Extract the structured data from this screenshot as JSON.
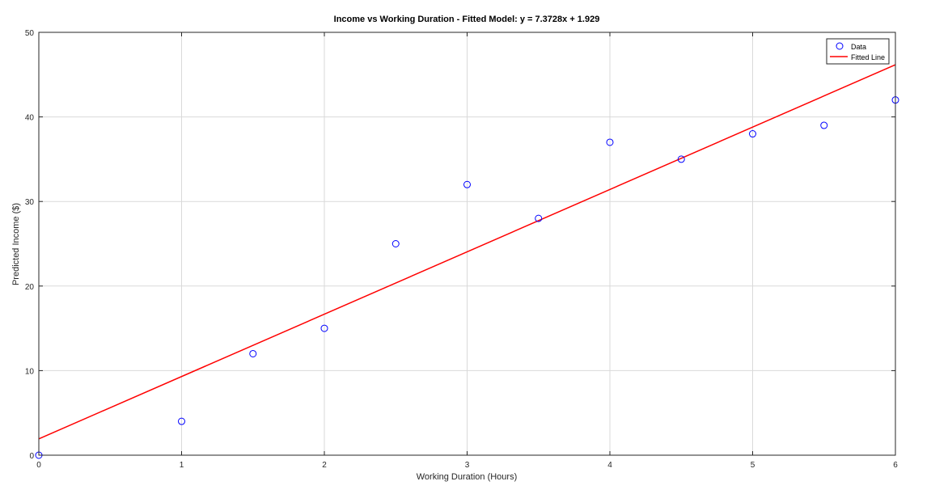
{
  "chart_data": {
    "type": "scatter",
    "title": "Income vs Working Duration - Fitted Model: y = 7.3728x + 1.929",
    "xlabel": "Working Duration (Hours)",
    "ylabel": "Predicted Income ($)",
    "xlim": [
      0,
      6
    ],
    "ylim": [
      0,
      50
    ],
    "xticks": [
      0,
      1,
      2,
      3,
      4,
      5,
      6
    ],
    "yticks": [
      0,
      10,
      20,
      30,
      40,
      50
    ],
    "grid": true,
    "legend_position": "top-right",
    "series": [
      {
        "name": "Data",
        "kind": "scatter",
        "marker": "circle-open",
        "color": "#0000ff",
        "x": [
          0,
          1,
          1.5,
          2,
          2.5,
          3,
          3.5,
          4,
          4.5,
          5,
          5.5,
          6
        ],
        "y": [
          0,
          4,
          12,
          15,
          25,
          32,
          28,
          37,
          35,
          38,
          39,
          42
        ]
      },
      {
        "name": "Fitted Line",
        "kind": "line",
        "color": "#ff0000",
        "slope": 7.3728,
        "intercept": 1.929
      }
    ]
  }
}
